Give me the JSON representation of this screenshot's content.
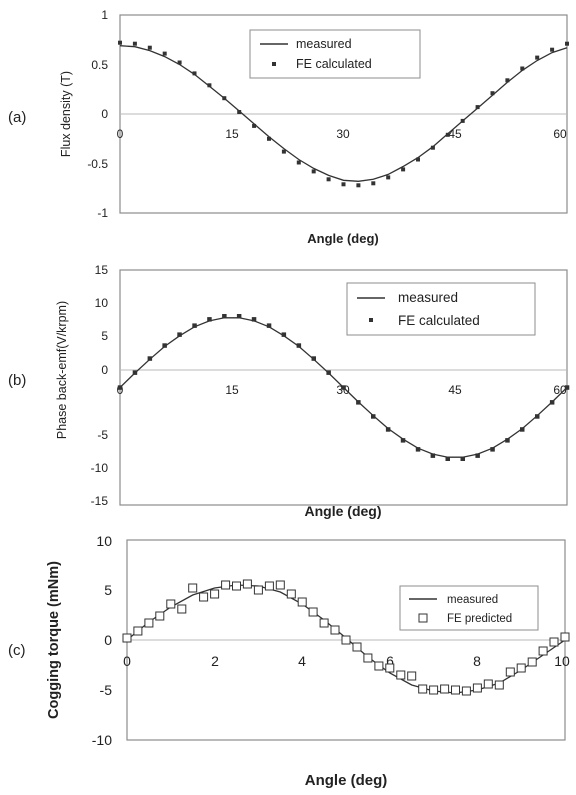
{
  "chart_data": [
    {
      "panel_label": "(a)",
      "type": "line",
      "xlabel": "Angle (deg)",
      "ylabel": "Flux density (T)",
      "xlim": [
        0,
        60
      ],
      "ylim": [
        -1,
        1
      ],
      "xticks": [
        0,
        15,
        30,
        45,
        60
      ],
      "yticks": [
        -1,
        -0.5,
        0,
        0.5,
        1
      ],
      "ytick_labels": [
        "-1",
        "-0.5",
        "0",
        "0.5",
        "1"
      ],
      "legend": {
        "placement": "top-center"
      },
      "series": [
        {
          "name": "measured",
          "style": "line",
          "color": "#333333",
          "x": [
            0,
            2,
            4,
            6,
            8,
            10,
            12,
            14,
            16,
            18,
            20,
            22,
            24,
            26,
            28,
            30,
            32,
            34,
            36,
            38,
            40,
            42,
            44,
            46,
            48,
            50,
            52,
            54,
            56,
            58,
            60
          ],
          "y": [
            0.69,
            0.68,
            0.64,
            0.58,
            0.5,
            0.4,
            0.28,
            0.16,
            0.03,
            -0.1,
            -0.23,
            -0.35,
            -0.46,
            -0.55,
            -0.62,
            -0.67,
            -0.68,
            -0.66,
            -0.61,
            -0.53,
            -0.44,
            -0.33,
            -0.2,
            -0.07,
            0.06,
            0.19,
            0.32,
            0.44,
            0.54,
            0.62,
            0.67
          ]
        },
        {
          "name": "FE calculated",
          "style": "markers",
          "color": "#333333",
          "x": [
            0,
            2,
            4,
            6,
            8,
            10,
            12,
            14,
            16,
            18,
            20,
            22,
            24,
            26,
            28,
            30,
            32,
            34,
            36,
            38,
            40,
            42,
            44,
            46,
            48,
            50,
            52,
            54,
            56,
            58,
            60
          ],
          "y": [
            0.72,
            0.71,
            0.67,
            0.61,
            0.52,
            0.41,
            0.29,
            0.16,
            0.02,
            -0.12,
            -0.25,
            -0.38,
            -0.49,
            -0.58,
            -0.66,
            -0.71,
            -0.72,
            -0.7,
            -0.64,
            -0.56,
            -0.46,
            -0.34,
            -0.21,
            -0.07,
            0.07,
            0.21,
            0.34,
            0.46,
            0.57,
            0.65,
            0.71
          ]
        }
      ]
    },
    {
      "panel_label": "(b)",
      "type": "line",
      "xlabel": "Angle (deg)",
      "ylabel": "Phase back-emf(V/krpm)",
      "xlim": [
        0,
        60
      ],
      "ylim": [
        -15,
        15
      ],
      "xticks": [
        0,
        15,
        30,
        45,
        60
      ],
      "yticks": [
        -15,
        -10,
        -5,
        0,
        5,
        10,
        15
      ],
      "ytick_labels": [
        "-15",
        "-10",
        "-5",
        "0",
        "5",
        "10",
        "15"
      ],
      "legend": {
        "placement": "top-right"
      },
      "series": [
        {
          "name": "measured",
          "style": "line",
          "color": "#333333",
          "x": [
            0,
            2,
            4,
            6,
            8,
            10,
            12,
            14,
            16,
            18,
            20,
            22,
            24,
            26,
            28,
            30,
            32,
            34,
            36,
            38,
            40,
            42,
            44,
            46,
            48,
            50,
            52,
            54,
            56,
            58,
            60
          ],
          "y": [
            0,
            1.85,
            3.6,
            5.25,
            6.6,
            7.75,
            8.5,
            8.9,
            8.9,
            8.5,
            7.75,
            6.6,
            5.25,
            3.6,
            1.85,
            0,
            -1.85,
            -3.6,
            -5.25,
            -6.6,
            -7.75,
            -8.5,
            -8.9,
            -8.9,
            -8.5,
            -7.75,
            -6.6,
            -5.25,
            -3.6,
            -1.85,
            0
          ]
        },
        {
          "name": "FE calculated",
          "style": "markers",
          "color": "#333333",
          "x": [
            0,
            2,
            4,
            6,
            8,
            10,
            12,
            14,
            16,
            18,
            20,
            22,
            24,
            26,
            28,
            30,
            32,
            34,
            36,
            38,
            40,
            42,
            44,
            46,
            48,
            50,
            52,
            54,
            56,
            58,
            60
          ],
          "y": [
            0,
            1.9,
            3.7,
            5.35,
            6.75,
            7.9,
            8.7,
            9.1,
            9.1,
            8.7,
            7.9,
            6.75,
            5.35,
            3.7,
            1.9,
            0,
            -1.9,
            -3.7,
            -5.35,
            -6.75,
            -7.9,
            -8.7,
            -9.1,
            -9.1,
            -8.7,
            -7.9,
            -6.75,
            -5.35,
            -3.7,
            -1.9,
            0
          ]
        }
      ]
    },
    {
      "panel_label": "(c)",
      "type": "line",
      "xlabel": "Angle (deg)",
      "ylabel": "Cogging torque (mNm)",
      "xlim": [
        0,
        10
      ],
      "ylim": [
        -10,
        10
      ],
      "xticks": [
        0,
        2,
        4,
        6,
        8,
        10
      ],
      "yticks": [
        -10,
        -5,
        0,
        5,
        10
      ],
      "ytick_labels": [
        "-10",
        "-5",
        "0",
        "5",
        "10"
      ],
      "legend": {
        "placement": "right"
      },
      "series": [
        {
          "name": "measured",
          "style": "line",
          "color": "#333333",
          "x": [
            0,
            0.5,
            1,
            1.5,
            2,
            2.5,
            3,
            3.5,
            4,
            4.5,
            5,
            5.5,
            6,
            6.5,
            7,
            7.5,
            8,
            8.5,
            9,
            9.5,
            10
          ],
          "y": [
            0,
            1.8,
            3.3,
            4.5,
            5.2,
            5.5,
            5.4,
            4.8,
            3.6,
            2,
            0.2,
            -1.7,
            -3.3,
            -4.5,
            -5.1,
            -5.3,
            -5,
            -4.3,
            -3,
            -1.5,
            0
          ]
        },
        {
          "name": "FE predicted",
          "style": "open-squares",
          "color": "#333333",
          "x": [
            0,
            0.25,
            0.5,
            0.75,
            1,
            1.25,
            1.5,
            1.75,
            2,
            2.25,
            2.5,
            2.75,
            3,
            3.25,
            3.5,
            3.75,
            4,
            4.25,
            4.5,
            4.75,
            5,
            5.25,
            5.5,
            5.75,
            6,
            6.25,
            6.5,
            6.75,
            7,
            7.25,
            7.5,
            7.75,
            8,
            8.25,
            8.5,
            8.75,
            9,
            9.25,
            9.5,
            9.75,
            10
          ],
          "y": [
            0.2,
            0.9,
            1.7,
            2.4,
            3.6,
            3.1,
            5.2,
            4.3,
            4.6,
            5.5,
            5.4,
            5.6,
            5,
            5.4,
            5.5,
            4.6,
            3.8,
            2.8,
            1.7,
            1,
            0,
            -0.7,
            -1.8,
            -2.6,
            -2.8,
            -3.5,
            -3.6,
            -4.9,
            -5,
            -4.9,
            -5,
            -5.1,
            -4.8,
            -4.4,
            -4.5,
            -3.2,
            -2.8,
            -2.2,
            -1.1,
            -0.2,
            0.3
          ]
        }
      ]
    }
  ]
}
